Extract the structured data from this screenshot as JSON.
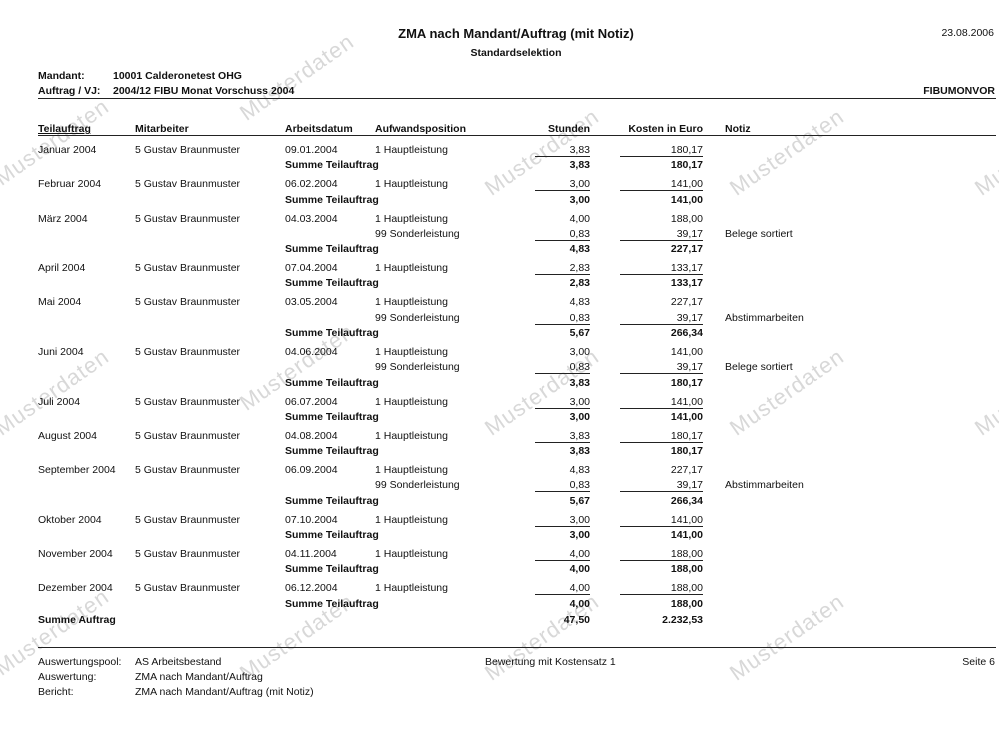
{
  "header": {
    "title": "ZMA nach Mandant/Auftrag (mit Notiz)",
    "subtitle": "Standardselektion",
    "date": "23.08.2006",
    "mandant_label": "Mandant:",
    "mandant_value": "10001 Calderonetest OHG",
    "auftrag_label": "Auftrag / VJ:",
    "auftrag_value": "2004/12 FIBU Monat Vorschuss 2004",
    "code": "FIBUMONVOR"
  },
  "columns": {
    "teilauftrag": "Teilauftrag",
    "mitarbeiter": "Mitarbeiter",
    "arbeitsdatum": "Arbeitsdatum",
    "aufwandsposition": "Aufwandsposition",
    "stunden": "Stunden",
    "kosten": "Kosten in Euro",
    "notiz": "Notiz"
  },
  "groups": [
    {
      "teilauftrag": "Januar 2004",
      "mitarbeiter": "5 Gustav Braunmuster",
      "lines": [
        {
          "datum": "09.01.2004",
          "position": "1 Hauptleistung",
          "stunden": "3,83",
          "kosten": "180,17",
          "notiz": ""
        }
      ],
      "summe": {
        "label": "Summe Teilauftrag",
        "stunden": "3,83",
        "kosten": "180,17"
      }
    },
    {
      "teilauftrag": "Februar 2004",
      "mitarbeiter": "5 Gustav Braunmuster",
      "lines": [
        {
          "datum": "06.02.2004",
          "position": "1 Hauptleistung",
          "stunden": "3,00",
          "kosten": "141,00",
          "notiz": ""
        }
      ],
      "summe": {
        "label": "Summe Teilauftrag",
        "stunden": "3,00",
        "kosten": "141,00"
      }
    },
    {
      "teilauftrag": "März 2004",
      "mitarbeiter": "5 Gustav Braunmuster",
      "lines": [
        {
          "datum": "04.03.2004",
          "position": "1 Hauptleistung",
          "stunden": "4,00",
          "kosten": "188,00",
          "notiz": ""
        },
        {
          "datum": "",
          "position": "99 Sonderleistung",
          "stunden": "0,83",
          "kosten": "39,17",
          "notiz": "Belege sortiert"
        }
      ],
      "summe": {
        "label": "Summe Teilauftrag",
        "stunden": "4,83",
        "kosten": "227,17"
      }
    },
    {
      "teilauftrag": "April 2004",
      "mitarbeiter": "5 Gustav Braunmuster",
      "lines": [
        {
          "datum": "07.04.2004",
          "position": "1 Hauptleistung",
          "stunden": "2,83",
          "kosten": "133,17",
          "notiz": ""
        }
      ],
      "summe": {
        "label": "Summe Teilauftrag",
        "stunden": "2,83",
        "kosten": "133,17"
      }
    },
    {
      "teilauftrag": "Mai 2004",
      "mitarbeiter": "5 Gustav Braunmuster",
      "lines": [
        {
          "datum": "03.05.2004",
          "position": "1 Hauptleistung",
          "stunden": "4,83",
          "kosten": "227,17",
          "notiz": ""
        },
        {
          "datum": "",
          "position": "99 Sonderleistung",
          "stunden": "0,83",
          "kosten": "39,17",
          "notiz": "Abstimmarbeiten"
        }
      ],
      "summe": {
        "label": "Summe Teilauftrag",
        "stunden": "5,67",
        "kosten": "266,34"
      }
    },
    {
      "teilauftrag": "Juni 2004",
      "mitarbeiter": "5 Gustav Braunmuster",
      "lines": [
        {
          "datum": "04.06.2004",
          "position": "1 Hauptleistung",
          "stunden": "3,00",
          "kosten": "141,00",
          "notiz": ""
        },
        {
          "datum": "",
          "position": "99 Sonderleistung",
          "stunden": "0,83",
          "kosten": "39,17",
          "notiz": "Belege sortiert"
        }
      ],
      "summe": {
        "label": "Summe Teilauftrag",
        "stunden": "3,83",
        "kosten": "180,17"
      }
    },
    {
      "teilauftrag": "Juli 2004",
      "mitarbeiter": "5 Gustav Braunmuster",
      "lines": [
        {
          "datum": "06.07.2004",
          "position": "1 Hauptleistung",
          "stunden": "3,00",
          "kosten": "141,00",
          "notiz": ""
        }
      ],
      "summe": {
        "label": "Summe Teilauftrag",
        "stunden": "3,00",
        "kosten": "141,00"
      }
    },
    {
      "teilauftrag": "August 2004",
      "mitarbeiter": "5 Gustav Braunmuster",
      "lines": [
        {
          "datum": "04.08.2004",
          "position": "1 Hauptleistung",
          "stunden": "3,83",
          "kosten": "180,17",
          "notiz": ""
        }
      ],
      "summe": {
        "label": "Summe Teilauftrag",
        "stunden": "3,83",
        "kosten": "180,17"
      }
    },
    {
      "teilauftrag": "September 2004",
      "mitarbeiter": "5 Gustav Braunmuster",
      "lines": [
        {
          "datum": "06.09.2004",
          "position": "1 Hauptleistung",
          "stunden": "4,83",
          "kosten": "227,17",
          "notiz": ""
        },
        {
          "datum": "",
          "position": "99 Sonderleistung",
          "stunden": "0,83",
          "kosten": "39,17",
          "notiz": "Abstimmarbeiten"
        }
      ],
      "summe": {
        "label": "Summe Teilauftrag",
        "stunden": "5,67",
        "kosten": "266,34"
      }
    },
    {
      "teilauftrag": "Oktober 2004",
      "mitarbeiter": "5 Gustav Braunmuster",
      "lines": [
        {
          "datum": "07.10.2004",
          "position": "1 Hauptleistung",
          "stunden": "3,00",
          "kosten": "141,00",
          "notiz": ""
        }
      ],
      "summe": {
        "label": "Summe Teilauftrag",
        "stunden": "3,00",
        "kosten": "141,00"
      }
    },
    {
      "teilauftrag": "November 2004",
      "mitarbeiter": "5 Gustav Braunmuster",
      "lines": [
        {
          "datum": "04.11.2004",
          "position": "1 Hauptleistung",
          "stunden": "4,00",
          "kosten": "188,00",
          "notiz": ""
        }
      ],
      "summe": {
        "label": "Summe Teilauftrag",
        "stunden": "4,00",
        "kosten": "188,00"
      }
    },
    {
      "teilauftrag": "Dezember 2004",
      "mitarbeiter": "5 Gustav Braunmuster",
      "lines": [
        {
          "datum": "06.12.2004",
          "position": "1 Hauptleistung",
          "stunden": "4,00",
          "kosten": "188,00",
          "notiz": ""
        }
      ],
      "summe": {
        "label": "Summe Teilauftrag",
        "stunden": "4,00",
        "kosten": "188,00"
      }
    }
  ],
  "total": {
    "label": "Summe Auftrag",
    "stunden": "47,50",
    "kosten": "2.232,53"
  },
  "footer": {
    "pool_label": "Auswertungspool:",
    "pool_value": "AS Arbeitsbestand",
    "auswertung_label": "Auswertung:",
    "auswertung_value": "ZMA nach Mandant/Auftrag",
    "bericht_label": "Bericht:",
    "bericht_value": "ZMA nach Mandant/Auftrag (mit Notiz)",
    "bewertung": "Bewertung mit Kostensatz 1",
    "page": "Seite 6"
  },
  "watermark": "Musterdaten"
}
